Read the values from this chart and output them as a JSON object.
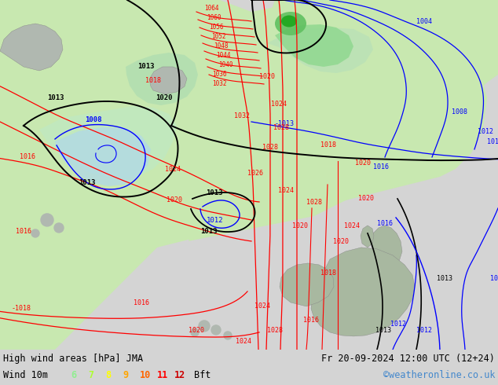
{
  "title_left": "High wind areas [hPa] JMA",
  "title_right": "Fr 20-09-2024 12:00 UTC (12+24)",
  "subtitle_label": "Wind 10m",
  "bft_values": [
    "6",
    "7",
    "8",
    "9",
    "10",
    "11",
    "12"
  ],
  "bft_colors": [
    "#90ee90",
    "#adff2f",
    "#ffff00",
    "#ffa500",
    "#ff6600",
    "#ff0000",
    "#cc0000"
  ],
  "bft_suffix": "Bft",
  "copyright": "©weatheronline.co.uk",
  "bottom_bar_color": "#d4d4d4",
  "map_bg_ocean": "#c8c8c8",
  "map_bg_land_light": "#c8e8b0",
  "map_bg_land_med": "#b8d8a0",
  "fig_width": 6.34,
  "fig_height": 4.9,
  "dpi": 100
}
